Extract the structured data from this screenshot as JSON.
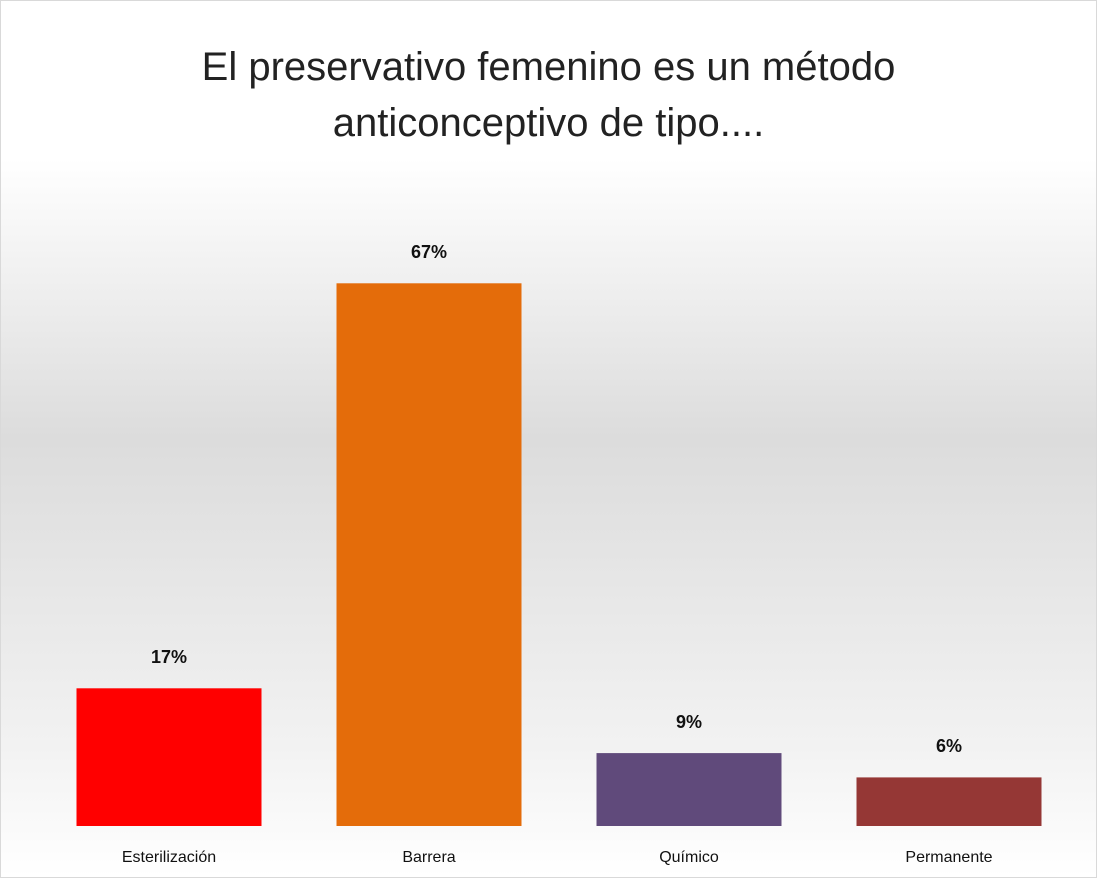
{
  "chart_data": {
    "type": "bar",
    "title": "El preservativo femenino es un método anticonceptivo de tipo....",
    "categories": [
      "Esterilización",
      "Barrera",
      "Químico",
      "Permanente"
    ],
    "values": [
      17,
      67,
      9,
      6
    ],
    "value_labels": [
      "17%",
      "67%",
      "9%",
      "6%"
    ],
    "colors": [
      "#ff0000",
      "#e46c0a",
      "#604a7b",
      "#953735"
    ]
  }
}
